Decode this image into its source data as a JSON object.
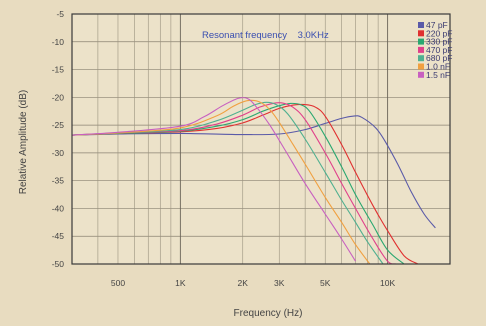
{
  "chart_data": {
    "type": "line",
    "title": "",
    "annotation": "Resonant frequency    3.0KHz",
    "xlabel": "Frequency (Hz)",
    "ylabel": "Relative Amplitude (dB)",
    "x_scale": "log",
    "xlim": [
      300,
      20000
    ],
    "ylim": [
      -50,
      -5
    ],
    "grid": true,
    "legend_position": "top-right",
    "x_ticks": [
      {
        "value": 500,
        "label": "500"
      },
      {
        "value": 1000,
        "label": "1K"
      },
      {
        "value": 2000,
        "label": "2K"
      },
      {
        "value": 3000,
        "label": "3K"
      },
      {
        "value": 5000,
        "label": "5K"
      },
      {
        "value": 10000,
        "label": "10K"
      }
    ],
    "y_ticks": [
      -5,
      -10,
      -15,
      -20,
      -25,
      -30,
      -35,
      -40,
      -45,
      -50
    ],
    "series": [
      {
        "name": "47 pF",
        "color": "#5a5aa8",
        "x": [
          300,
          500,
          1000,
          2000,
          3000,
          4000,
          5000,
          6000,
          6800,
          7500,
          9000,
          11000,
          13000,
          15000,
          17000
        ],
        "y": [
          -26.8,
          -26.6,
          -26.5,
          -26.7,
          -26.6,
          -25.8,
          -24.7,
          -23.8,
          -23.4,
          -23.6,
          -26,
          -31.5,
          -37,
          -41,
          -43.5
        ]
      },
      {
        "name": "220 pF",
        "color": "#e03030",
        "x": [
          300,
          500,
          1000,
          1500,
          2000,
          2500,
          3000,
          3500,
          4000,
          4500,
          5000,
          6000,
          7000,
          8500,
          10000,
          12000,
          14000
        ],
        "y": [
          -26.8,
          -26.5,
          -26.2,
          -25.6,
          -24.6,
          -23.2,
          -22,
          -21.4,
          -21.3,
          -21.8,
          -23.4,
          -28.5,
          -33.5,
          -39.5,
          -44,
          -48.5,
          -51
        ]
      },
      {
        "name": "330 pF",
        "color": "#2aa870",
        "x": [
          300,
          500,
          1000,
          1500,
          2000,
          2500,
          3000,
          3400,
          3800,
          4200,
          5000,
          6000,
          7000,
          8500,
          10000,
          12000
        ],
        "y": [
          -26.8,
          -26.5,
          -26.1,
          -25.2,
          -24,
          -22.5,
          -21.5,
          -21.1,
          -21.3,
          -22.5,
          -27,
          -32.5,
          -37.5,
          -43,
          -47.5,
          -51
        ]
      },
      {
        "name": "470 pF",
        "color": "#e0408a",
        "x": [
          300,
          500,
          1000,
          1500,
          2000,
          2400,
          2800,
          3100,
          3500,
          4000,
          5000,
          6000,
          7000,
          8500,
          10000,
          11000
        ],
        "y": [
          -26.8,
          -26.4,
          -26,
          -24.8,
          -23.2,
          -21.8,
          -21.1,
          -21,
          -21.8,
          -24,
          -30,
          -35.5,
          -40,
          -45.5,
          -49.5,
          -51
        ]
      },
      {
        "name": "680 pF",
        "color": "#50b090",
        "x": [
          300,
          500,
          1000,
          1500,
          2000,
          2300,
          2600,
          2900,
          3300,
          4000,
          5000,
          6000,
          7000,
          8000,
          9500
        ],
        "y": [
          -26.8,
          -26.4,
          -25.8,
          -24.2,
          -22.3,
          -21.3,
          -20.9,
          -21.3,
          -23,
          -27.5,
          -33.5,
          -38.5,
          -42.5,
          -46,
          -50.5
        ]
      },
      {
        "name": "1.0 nF",
        "color": "#f0a040",
        "x": [
          300,
          500,
          1000,
          1500,
          1800,
          2100,
          2400,
          2700,
          3000,
          3500,
          4000,
          5000,
          6000,
          7000,
          8200
        ],
        "y": [
          -26.8,
          -26.4,
          -25.5,
          -23.3,
          -21.6,
          -20.6,
          -20.8,
          -22.2,
          -24.5,
          -28.5,
          -32,
          -38,
          -42.5,
          -46.5,
          -50.5
        ]
      },
      {
        "name": "1.5 nF",
        "color": "#c860c0",
        "x": [
          300,
          500,
          1000,
          1300,
          1600,
          1900,
          2100,
          2300,
          2700,
          3200,
          4000,
          5000,
          6000,
          7000
        ],
        "y": [
          -26.8,
          -26.3,
          -25.2,
          -23.5,
          -21.5,
          -20.2,
          -20.2,
          -21.5,
          -25,
          -29.5,
          -35.5,
          -41,
          -45.5,
          -49.5
        ]
      }
    ]
  }
}
